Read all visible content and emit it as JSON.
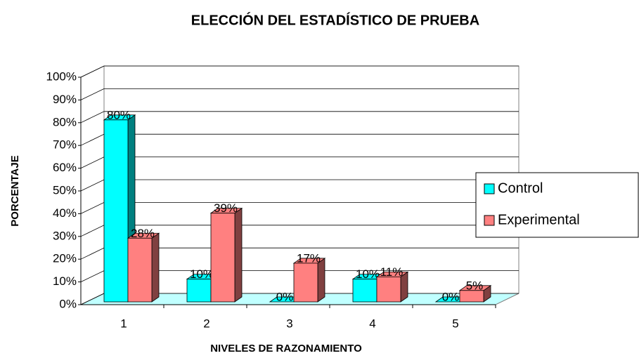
{
  "chart_data": {
    "type": "bar3d",
    "title": "ELECCIÓN DEL ESTADÍSTICO DE PRUEBA",
    "x_label": "NIVELES DE RAZONAMIENTO",
    "y_label": "PORCENTAJE",
    "categories": [
      "1",
      "2",
      "3",
      "4",
      "5"
    ],
    "series": [
      {
        "name": "Control",
        "color": "#00ffff",
        "side_color": "#008080",
        "values": [
          80,
          10,
          0,
          10,
          0
        ],
        "value_labels": [
          "80%",
          "10%",
          "0%",
          "10%",
          "0%"
        ]
      },
      {
        "name": "Experimental",
        "color": "#ff8080",
        "side_color": "#804040",
        "values": [
          28,
          39,
          17,
          11,
          5
        ],
        "value_labels": [
          "28%",
          "39%",
          "17%",
          "11%",
          "5%"
        ]
      }
    ],
    "ylim": [
      0,
      100
    ],
    "yticks": [
      {
        "value": 0,
        "label": "0%"
      },
      {
        "value": 10,
        "label": "10%"
      },
      {
        "value": 20,
        "label": "20%"
      },
      {
        "value": 30,
        "label": "30%"
      },
      {
        "value": 40,
        "label": "40%"
      },
      {
        "value": 50,
        "label": "50%"
      },
      {
        "value": 60,
        "label": "60%"
      },
      {
        "value": 70,
        "label": "70%"
      },
      {
        "value": 80,
        "label": "80%"
      },
      {
        "value": 90,
        "label": "90%"
      },
      {
        "value": 100,
        "label": "100%"
      }
    ],
    "grid": true,
    "legend": "right"
  }
}
